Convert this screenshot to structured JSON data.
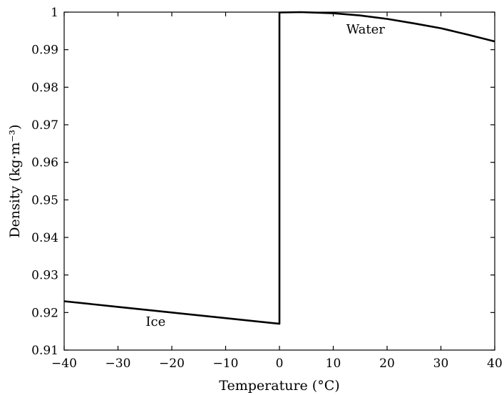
{
  "chart_data": {
    "type": "line",
    "title": "",
    "xlabel": "Temperature (°C)",
    "ylabel": "Density (kg·m⁻³)",
    "xlim": [
      -40,
      40
    ],
    "ylim": [
      0.91,
      1.0
    ],
    "xticks": [
      -40,
      -30,
      -20,
      -10,
      0,
      10,
      20,
      30,
      40
    ],
    "xtick_labels": [
      "−40",
      "−30",
      "−20",
      "−10",
      "0",
      "10",
      "20",
      "30",
      "40"
    ],
    "yticks": [
      0.91,
      0.92,
      0.93,
      0.94,
      0.95,
      0.96,
      0.97,
      0.98,
      0.99,
      1.0
    ],
    "ytick_labels": [
      "0.91",
      "0.92",
      "0.93",
      "0.94",
      "0.95",
      "0.96",
      "0.97",
      "0.98",
      "0.99",
      "1"
    ],
    "grid": false,
    "legend": "none",
    "series": [
      {
        "x": [
          -40,
          -30,
          -20,
          -10,
          0,
          0,
          4,
          10,
          15,
          20,
          25,
          30,
          35,
          40
        ],
        "y": [
          0.923,
          0.9215,
          0.92,
          0.9185,
          0.917,
          0.9999,
          1.0,
          0.9997,
          0.9991,
          0.9982,
          0.997,
          0.9957,
          0.994,
          0.9922
        ],
        "color": "#000000"
      }
    ],
    "annotations": [
      {
        "text": "Ice",
        "x": -23,
        "y": 0.9165
      },
      {
        "text": "Water",
        "x": 16,
        "y": 0.9943
      }
    ]
  }
}
